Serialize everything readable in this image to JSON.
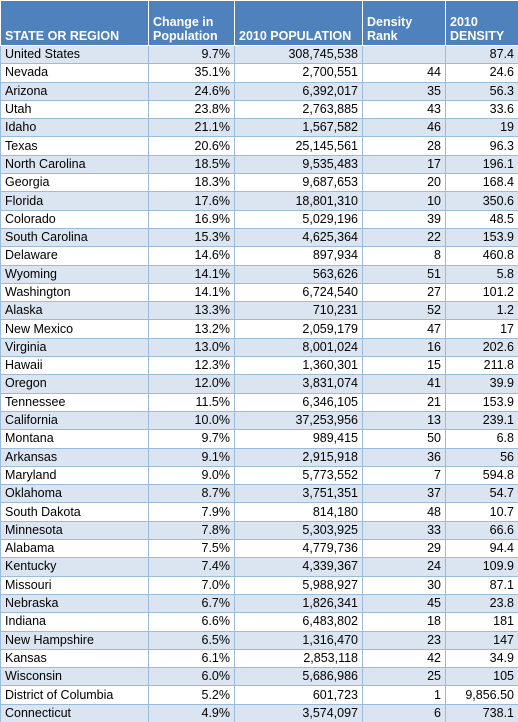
{
  "headers": [
    "STATE OR REGION",
    "Change in Population",
    "2010 POPULATION",
    "Density Rank",
    "2010 DENSITY"
  ],
  "rows": [
    [
      "United States",
      "9.7%",
      "308,745,538",
      "",
      "87.4"
    ],
    [
      "Nevada",
      "35.1%",
      "2,700,551",
      "44",
      "24.6"
    ],
    [
      "Arizona",
      "24.6%",
      "6,392,017",
      "35",
      "56.3"
    ],
    [
      "Utah",
      "23.8%",
      "2,763,885",
      "43",
      "33.6"
    ],
    [
      "Idaho",
      "21.1%",
      "1,567,582",
      "46",
      "19"
    ],
    [
      "Texas",
      "20.6%",
      "25,145,561",
      "28",
      "96.3"
    ],
    [
      "North Carolina",
      "18.5%",
      "9,535,483",
      "17",
      "196.1"
    ],
    [
      "Georgia",
      "18.3%",
      "9,687,653",
      "20",
      "168.4"
    ],
    [
      "Florida",
      "17.6%",
      "18,801,310",
      "10",
      "350.6"
    ],
    [
      "Colorado",
      "16.9%",
      "5,029,196",
      "39",
      "48.5"
    ],
    [
      "South Carolina",
      "15.3%",
      "4,625,364",
      "22",
      "153.9"
    ],
    [
      "Delaware",
      "14.6%",
      "897,934",
      "8",
      "460.8"
    ],
    [
      "Wyoming",
      "14.1%",
      "563,626",
      "51",
      "5.8"
    ],
    [
      "Washington",
      "14.1%",
      "6,724,540",
      "27",
      "101.2"
    ],
    [
      "Alaska",
      "13.3%",
      "710,231",
      "52",
      "1.2"
    ],
    [
      "New Mexico",
      "13.2%",
      "2,059,179",
      "47",
      "17"
    ],
    [
      "Virginia",
      "13.0%",
      "8,001,024",
      "16",
      "202.6"
    ],
    [
      "Hawaii",
      "12.3%",
      "1,360,301",
      "15",
      "211.8"
    ],
    [
      "Oregon",
      "12.0%",
      "3,831,074",
      "41",
      "39.9"
    ],
    [
      "Tennessee",
      "11.5%",
      "6,346,105",
      "21",
      "153.9"
    ],
    [
      "California",
      "10.0%",
      "37,253,956",
      "13",
      "239.1"
    ],
    [
      "Montana",
      "9.7%",
      "989,415",
      "50",
      "6.8"
    ],
    [
      "Arkansas",
      "9.1%",
      "2,915,918",
      "36",
      "56"
    ],
    [
      "Maryland",
      "9.0%",
      "5,773,552",
      "7",
      "594.8"
    ],
    [
      "Oklahoma",
      "8.7%",
      "3,751,351",
      "37",
      "54.7"
    ],
    [
      "South Dakota",
      "7.9%",
      "814,180",
      "48",
      "10.7"
    ],
    [
      "Minnesota",
      "7.8%",
      "5,303,925",
      "33",
      "66.6"
    ],
    [
      "Alabama",
      "7.5%",
      "4,779,736",
      "29",
      "94.4"
    ],
    [
      "Kentucky",
      "7.4%",
      "4,339,367",
      "24",
      "109.9"
    ],
    [
      "Missouri",
      "7.0%",
      "5,988,927",
      "30",
      "87.1"
    ],
    [
      "Nebraska",
      "6.7%",
      "1,826,341",
      "45",
      "23.8"
    ],
    [
      "Indiana",
      "6.6%",
      "6,483,802",
      "18",
      "181"
    ],
    [
      "New Hampshire",
      "6.5%",
      "1,316,470",
      "23",
      "147"
    ],
    [
      "Kansas",
      "6.1%",
      "2,853,118",
      "42",
      "34.9"
    ],
    [
      "Wisconsin",
      "6.0%",
      "5,686,986",
      "25",
      "105"
    ],
    [
      "District of Columbia",
      "5.2%",
      "601,723",
      "1",
      "9,856.50"
    ],
    [
      "Connecticut",
      "4.9%",
      "3,574,097",
      "6",
      "738.1"
    ]
  ]
}
